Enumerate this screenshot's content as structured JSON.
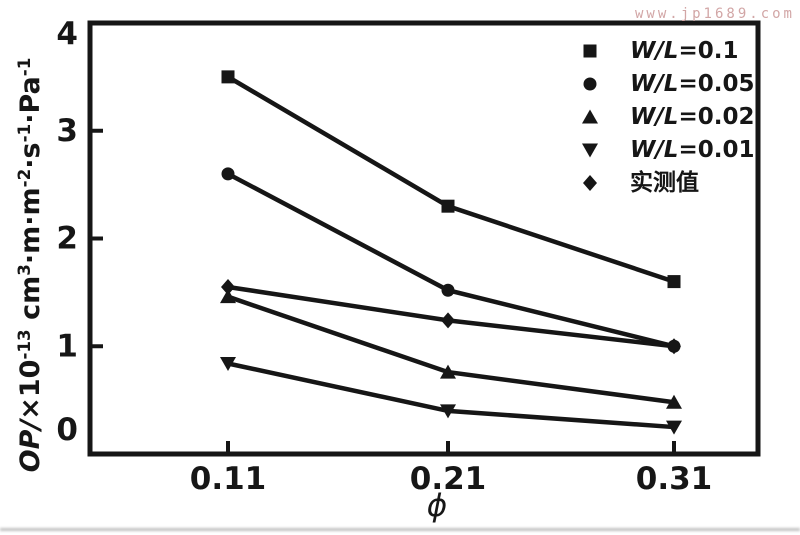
{
  "watermark": "www.jp1689.com",
  "colors": {
    "line": "#161616",
    "text": "#161616",
    "watermark": "#d2a6a6",
    "background": "#ffffff"
  },
  "chart_data": {
    "type": "line",
    "title": "",
    "xlabel": "ϕ",
    "ylabel": "OP/×10⁻¹³ cm³·m·m⁻²·s⁻¹·Pa⁻¹",
    "ylabel_parts": [
      {
        "t": "OP/",
        "style": "it"
      },
      {
        "t": "×10",
        "style": ""
      },
      {
        "t": "-13",
        "style": "sup"
      },
      {
        "t": " cm",
        "style": ""
      },
      {
        "t": "3",
        "style": "sup"
      },
      {
        "t": "·m·m",
        "style": ""
      },
      {
        "t": "-2",
        "style": "sup"
      },
      {
        "t": "·s",
        "style": ""
      },
      {
        "t": "-1",
        "style": "sup"
      },
      {
        "t": "·Pa",
        "style": ""
      },
      {
        "t": "-1",
        "style": "sup"
      }
    ],
    "categories": [
      "0.11",
      "0.21",
      "0.31"
    ],
    "ylim": [
      0,
      4
    ],
    "yticks": [
      0,
      1,
      2,
      3,
      4
    ],
    "grid": false,
    "legend_position": "top-right",
    "series": [
      {
        "label_italic": "W/L",
        "label_rest": "=0.1",
        "marker": "square",
        "values": [
          3.5,
          2.3,
          1.6
        ]
      },
      {
        "label_italic": "W/L",
        "label_rest": "=0.05",
        "marker": "circle",
        "values": [
          2.6,
          1.52,
          1.0
        ]
      },
      {
        "label_italic": "W/L",
        "label_rest": "=0.02",
        "marker": "triangle-up",
        "values": [
          1.46,
          0.76,
          0.48
        ]
      },
      {
        "label_italic": "W/L",
        "label_rest": "=0.01",
        "marker": "triangle-down",
        "values": [
          0.84,
          0.4,
          0.25
        ]
      },
      {
        "label_italic": "",
        "label_rest": "实测值",
        "marker": "diamond",
        "values": [
          1.55,
          1.24,
          1.0
        ]
      }
    ]
  }
}
